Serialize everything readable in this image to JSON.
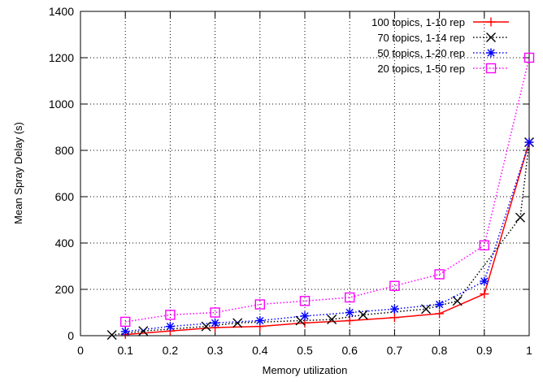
{
  "chart_data": {
    "type": "line",
    "title": "",
    "xlabel": "Memory utilization",
    "ylabel": "Mean Spray Delay (s)",
    "xlim": [
      0,
      1
    ],
    "ylim": [
      0,
      1400
    ],
    "xticks": [
      "0",
      "0.1",
      "0.2",
      "0.3",
      "0.4",
      "0.5",
      "0.6",
      "0.7",
      "0.8",
      "0.9",
      "1"
    ],
    "yticks": [
      "0",
      "200",
      "400",
      "600",
      "800",
      "1000",
      "1200",
      "1400"
    ],
    "grid": true,
    "legend_position": "top-right",
    "series": [
      {
        "name": "100 topics, 1-10 rep",
        "color": "#ff0000",
        "marker": "plus",
        "line": "solid",
        "x": [
          0.1,
          0.2,
          0.3,
          0.4,
          0.5,
          0.6,
          0.7,
          0.8,
          0.9,
          1.0
        ],
        "y": [
          5,
          20,
          35,
          40,
          55,
          65,
          78,
          95,
          180,
          835
        ]
      },
      {
        "name": "70 topics, 1-14 rep",
        "color": "#000000",
        "marker": "cross",
        "line": "dotted",
        "x": [
          0.07,
          0.14,
          0.28,
          0.35,
          0.49,
          0.56,
          0.63,
          0.77,
          0.84,
          0.98,
          1.0
        ],
        "y": [
          3,
          20,
          40,
          55,
          65,
          70,
          90,
          115,
          150,
          510,
          835
        ]
      },
      {
        "name": "50 topics, 1-20 rep",
        "color": "#0000ff",
        "marker": "star",
        "line": "dotted",
        "x": [
          0.1,
          0.2,
          0.3,
          0.4,
          0.5,
          0.6,
          0.7,
          0.8,
          0.9,
          1.0
        ],
        "y": [
          18,
          40,
          55,
          65,
          85,
          100,
          115,
          135,
          235,
          835
        ]
      },
      {
        "name": "20 topics, 1-50 rep",
        "color": "#ff00ff",
        "marker": "square",
        "line": "dotted",
        "x": [
          0.1,
          0.2,
          0.3,
          0.4,
          0.5,
          0.6,
          0.7,
          0.8,
          0.9,
          1.0
        ],
        "y": [
          60,
          90,
          100,
          135,
          150,
          165,
          215,
          265,
          390,
          1200
        ]
      }
    ]
  }
}
